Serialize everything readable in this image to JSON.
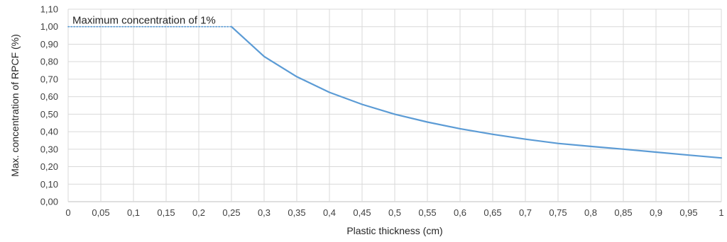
{
  "chart_data": {
    "type": "line",
    "xlabel": "Plastic thickness (cm)",
    "ylabel": "Max. concentration of RPCF (%)",
    "annotation": "Maximum concentration of 1%",
    "xlim": [
      0,
      1
    ],
    "ylim": [
      0,
      1.1
    ],
    "x_ticks": [
      "0",
      "0,05",
      "0,1",
      "0,15",
      "0,2",
      "0,25",
      "0,3",
      "0,35",
      "0,4",
      "0,45",
      "0,5",
      "0,55",
      "0,6",
      "0,65",
      "0,7",
      "0,75",
      "0,8",
      "0,85",
      "0,9",
      "0,95",
      "1"
    ],
    "y_ticks": [
      "0,00",
      "0,10",
      "0,20",
      "0,30",
      "0,40",
      "0,50",
      "0,60",
      "0,70",
      "0,80",
      "0,90",
      "1,00",
      "1,10"
    ],
    "grid": true,
    "colors": {
      "line": "#5b9bd5",
      "grid": "#d9d9d9"
    },
    "series": [
      {
        "style": "dotted",
        "x": [
          0,
          0.25
        ],
        "y": [
          1.0,
          1.0
        ]
      },
      {
        "style": "solid",
        "x": [
          0.25,
          0.3,
          0.35,
          0.4,
          0.45,
          0.5,
          0.55,
          0.6,
          0.65,
          0.7,
          0.75,
          0.8,
          0.85,
          0.9,
          0.95,
          1.0
        ],
        "y": [
          1.0,
          0.83,
          0.714,
          0.625,
          0.556,
          0.5,
          0.455,
          0.417,
          0.385,
          0.357,
          0.333,
          0.316,
          0.3,
          0.283,
          0.266,
          0.25
        ]
      }
    ]
  }
}
